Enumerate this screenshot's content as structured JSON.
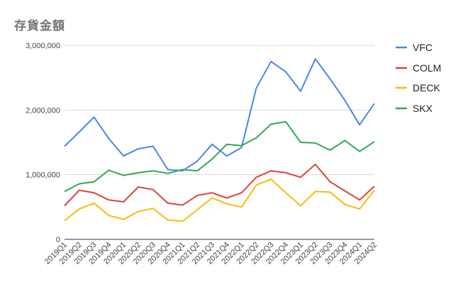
{
  "chart_data": {
    "type": "line",
    "title": "存貨金額",
    "xlabel": "",
    "ylabel": "",
    "ylim": [
      0,
      3000000
    ],
    "yticks": [
      0,
      1000000,
      2000000,
      3000000
    ],
    "ytick_labels": [
      "0",
      "1,000,000",
      "2,000,000",
      "3,000,000"
    ],
    "grid": true,
    "legend_position": "right",
    "categories": [
      "2019Q1",
      "2019Q2",
      "2019Q3",
      "2019Q4",
      "2020Q1",
      "2020Q2",
      "2020Q3",
      "2020Q4",
      "2021Q1",
      "2021Q2",
      "2021Q3",
      "2021Q4",
      "2022Q1",
      "2022Q2",
      "2022Q3",
      "2022Q4",
      "2023Q1",
      "2023Q2",
      "2023Q3",
      "2023Q4",
      "2024Q1",
      "2024Q2"
    ],
    "series": [
      {
        "name": "VFC",
        "color": "#4a86e8",
        "values": [
          1440000,
          1660000,
          1890000,
          1560000,
          1290000,
          1400000,
          1440000,
          1080000,
          1060000,
          1210000,
          1470000,
          1290000,
          1420000,
          2340000,
          2750000,
          2590000,
          2290000,
          2790000,
          2480000,
          2150000,
          1770000,
          2100000
        ]
      },
      {
        "name": "COLM",
        "color": "#d9453c",
        "values": [
          520000,
          760000,
          720000,
          610000,
          580000,
          810000,
          770000,
          560000,
          530000,
          680000,
          720000,
          640000,
          720000,
          960000,
          1060000,
          1030000,
          960000,
          1160000,
          890000,
          750000,
          610000,
          820000
        ]
      },
      {
        "name": "DECK",
        "color": "#f4bd0b",
        "values": [
          290000,
          470000,
          560000,
          370000,
          310000,
          430000,
          480000,
          300000,
          280000,
          460000,
          640000,
          550000,
          500000,
          840000,
          930000,
          720000,
          520000,
          740000,
          730000,
          540000,
          470000,
          760000
        ]
      },
      {
        "name": "SKX",
        "color": "#34a853",
        "values": [
          740000,
          860000,
          890000,
          1070000,
          990000,
          1030000,
          1060000,
          1020000,
          1080000,
          1060000,
          1240000,
          1470000,
          1450000,
          1570000,
          1780000,
          1820000,
          1500000,
          1490000,
          1380000,
          1530000,
          1360000,
          1510000
        ]
      }
    ]
  }
}
